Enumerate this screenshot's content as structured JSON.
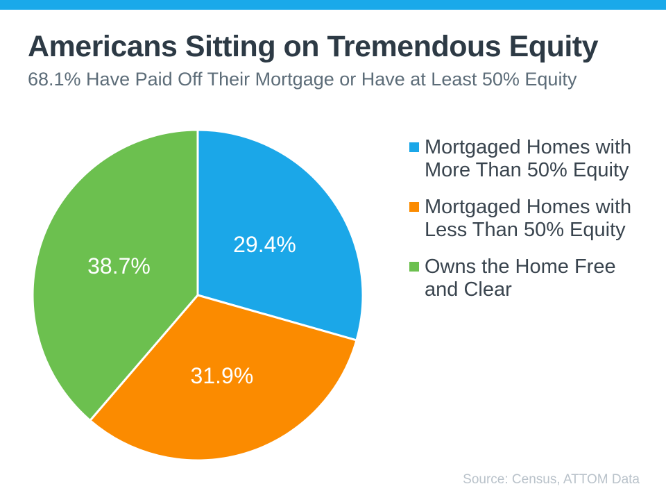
{
  "accent": {
    "top_bar_color": "#1AA9EA"
  },
  "header": {
    "title": "Americans Sitting on Tremendous Equity",
    "subtitle": "68.1% Have Paid Off Their Mortgage or Have at Least 50% Equity"
  },
  "chart_data": {
    "type": "pie",
    "title": "Americans Sitting on Tremendous Equity",
    "subtitle": "68.1% Have Paid Off Their Mortgage or Have at Least 50% Equity",
    "legend_position": "right",
    "start_angle_deg": 0,
    "direction": "clockwise",
    "data_label_color": "#FFFFFF",
    "slices": [
      {
        "label": "Mortgaged Homes with More Than 50% Equity",
        "value": 29.4,
        "display": "29.4%",
        "color": "#1BA7E8"
      },
      {
        "label": "Mortgaged Homes with Less Than 50% Equity",
        "value": 31.9,
        "display": "31.9%",
        "color": "#FB8B00"
      },
      {
        "label": "Owns the Home Free and Clear",
        "value": 38.7,
        "display": "38.7%",
        "color": "#6CC04F"
      }
    ]
  },
  "footer": {
    "source": "Source: Census, ATTOM Data"
  }
}
